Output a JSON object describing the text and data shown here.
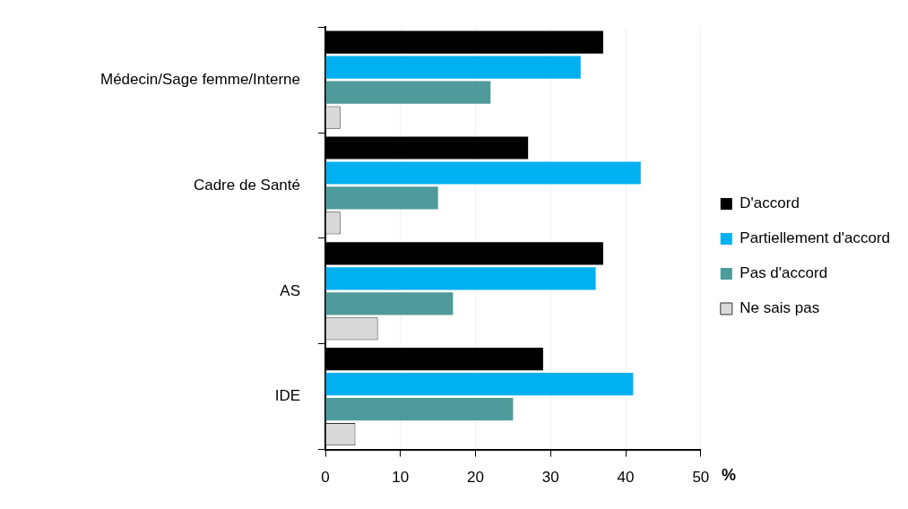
{
  "chart_data": {
    "type": "bar",
    "orientation": "horizontal",
    "xlabel": "%",
    "categories": [
      "Médecin/Sage femme/Interne",
      "Cadre de Santé",
      "AS",
      "IDE"
    ],
    "series": [
      {
        "name": "D'accord",
        "color": "#000000",
        "values": [
          37,
          27,
          37,
          29
        ]
      },
      {
        "name": "Partiellement d'accord",
        "color": "#00b0f0",
        "values": [
          34,
          42,
          36,
          41
        ]
      },
      {
        "name": "Pas d'accord",
        "color": "#4f9a9a",
        "values": [
          22,
          15,
          17,
          25
        ]
      },
      {
        "name": "Ne sais pas",
        "color": "#d9d9d9",
        "values": [
          2,
          2,
          7,
          4
        ]
      }
    ],
    "xlim": [
      0,
      50
    ],
    "xticks": [
      0,
      10,
      20,
      30,
      40,
      50
    ],
    "grid": "x",
    "legend": "right"
  }
}
